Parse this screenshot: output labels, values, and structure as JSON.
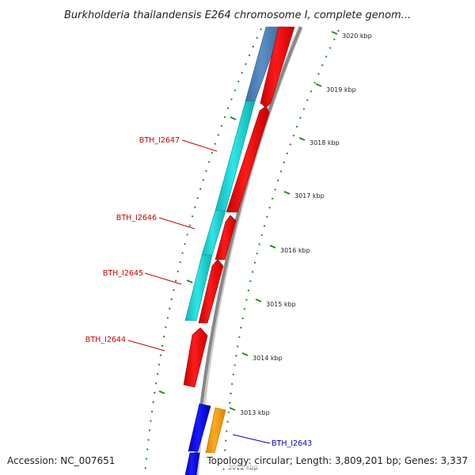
{
  "title": "Burkholderia thailandensis E264 chromosome I, complete genom...",
  "accession_label": "Accession: NC_007651",
  "summary_label": "Topology: circular; Length: 3,809,201 bp; Genes: 3,337",
  "ticks": [
    {
      "kbp": 3020,
      "label": "3020 kbp"
    },
    {
      "kbp": 3019,
      "label": "3019 kbp"
    },
    {
      "kbp": 3018,
      "label": "3018 kbp"
    },
    {
      "kbp": 3017,
      "label": "3017 kbp"
    },
    {
      "kbp": 3016,
      "label": "3016 kbp"
    },
    {
      "kbp": 3015,
      "label": "3015 kbp"
    },
    {
      "kbp": 3014,
      "label": "3014 kbp"
    },
    {
      "kbp": 3013,
      "label": "3013 kbp"
    },
    {
      "kbp": 3012,
      "label": "3012 kbp"
    }
  ],
  "gene_labels": [
    {
      "name": "BTH_I2647",
      "color": "#cc0000"
    },
    {
      "name": "BTH_I2646",
      "color": "#cc0000"
    },
    {
      "name": "BTH_I2645",
      "color": "#cc0000"
    },
    {
      "name": "BTH_I2644",
      "color": "#cc0000"
    },
    {
      "name": "BTH_I2643",
      "color": "#0000cc"
    }
  ],
  "colors": {
    "cds_red": "#ff0000",
    "cyan": "#14d2d2",
    "steel_blue": "#4a7db5",
    "blue": "#0000ee",
    "orange": "#ff9900",
    "backbone": "#888888",
    "tick_green": "#228b22"
  }
}
